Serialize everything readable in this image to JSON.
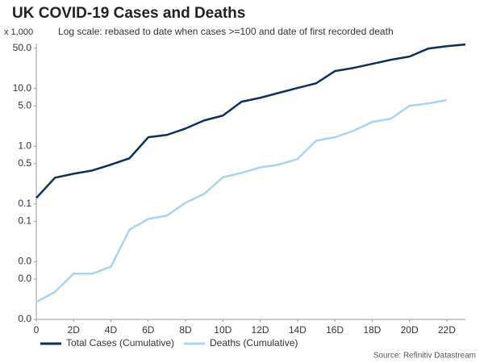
{
  "chart_data": {
    "type": "line",
    "title": "UK COVID-19 Cases and Deaths",
    "subtitle": "Log scale: rebased to date when cases >=100 and date of first recorded death",
    "y_unit": "x 1,000",
    "source": "Source: Refinitiv Datastream",
    "log_scale": true,
    "legend": "bottom",
    "x": [
      0,
      1,
      2,
      3,
      4,
      5,
      6,
      7,
      8,
      9,
      10,
      11,
      12,
      13,
      14,
      15,
      16,
      17,
      18,
      19,
      20,
      21,
      22,
      23
    ],
    "series": [
      {
        "name": "Total Cases (Cumulative)",
        "color": "#0d2e5c",
        "values": [
          0.127,
          0.285,
          0.334,
          0.38,
          0.48,
          0.62,
          1.43,
          1.57,
          2.03,
          2.8,
          3.4,
          5.9,
          6.9,
          8.4,
          10.2,
          12.3,
          20,
          22.7,
          26.7,
          31.4,
          35.7,
          49,
          54,
          57.8
        ]
      },
      {
        "name": "Deaths (Cumulative)",
        "color": "#a9d3f5",
        "values": [
          0.002,
          0.003,
          0.0062,
          0.0062,
          0.0082,
          0.036,
          0.055,
          0.063,
          0.105,
          0.15,
          0.29,
          0.345,
          0.43,
          0.48,
          0.6,
          1.25,
          1.43,
          1.85,
          2.63,
          3,
          5,
          5.5,
          6.3,
          null
        ]
      }
    ],
    "xlim": [
      0,
      23
    ],
    "xticks": [
      0,
      {
        "value": 2,
        "label": "2D"
      },
      {
        "value": 4,
        "label": "4D"
      },
      {
        "value": 6,
        "label": "6D"
      },
      {
        "value": 8,
        "label": "8D"
      },
      {
        "value": 10,
        "label": "10D"
      },
      {
        "value": 12,
        "label": "12D"
      },
      {
        "value": 14,
        "label": "14D"
      },
      {
        "value": 16,
        "label": "16D"
      },
      {
        "value": 18,
        "label": "18D"
      },
      {
        "value": 20,
        "label": "20D"
      },
      {
        "value": 22,
        "label": "22D"
      }
    ],
    "ylim": [
      0.001,
      60
    ],
    "yticks": [
      {
        "value": 50,
        "label": "50.0"
      },
      {
        "value": 10,
        "label": "10.0"
      },
      {
        "value": 5,
        "label": "5.0"
      },
      {
        "value": 1,
        "label": "1.0"
      },
      {
        "value": 0.5,
        "label": "0.5"
      },
      {
        "value": 0.1,
        "label": "0.1"
      },
      {
        "value": 0.05,
        "label": "0.1"
      },
      {
        "value": 0.01,
        "label": "0.0"
      },
      {
        "value": 0.005,
        "label": "0.0"
      },
      {
        "value": 0.001,
        "label": "0.0"
      }
    ]
  }
}
